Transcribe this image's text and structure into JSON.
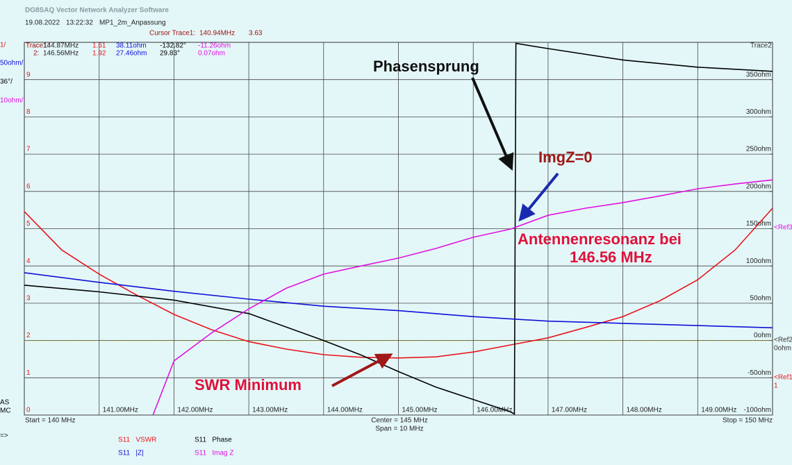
{
  "header": {
    "title": "DG8SAQ Vector Network Analyzer Software",
    "date": "19.08.2022",
    "time": "13:22:32",
    "file": "MP1_2m_Anpassung",
    "cursor_label": "Cursor Trace1:",
    "cursor_freq": "140.94MHz",
    "cursor_value": "3.63"
  },
  "cursor_readout": [
    [
      "Trace1:",
      "144.87MHz",
      "1.51",
      "38.11ohm",
      "-132.82°",
      "-11.26ohm"
    ],
    [
      "2:",
      "146.56MHz",
      "1.92",
      "27.46ohm",
      "29.83°",
      "0.07ohm"
    ]
  ],
  "left_labels": [
    "1/",
    "50ohm/",
    "36°/",
    "10ohm/"
  ],
  "mode_labels": [
    "AS",
    "MC"
  ],
  "right_labels": {
    "trace": "Trace2",
    "ref3": "<Ref3",
    "ref2": "<Ref2",
    "ref2_unit": "0ohm",
    "ref1": "<Ref1",
    "ref1_unit": "1"
  },
  "footer": {
    "start": "Start = 140 MHz",
    "center": "Center = 145 MHz",
    "span": "Span = 10 MHz",
    "stop": "Stop = 150 MHz",
    "prompt": "=>"
  },
  "chart_data": {
    "type": "line",
    "annotations": [
      "Phasensprung",
      "ImgZ=0",
      "Antennenresonanz bei",
      "146.56 MHz",
      "SWR Minimum"
    ],
    "xlim": [
      140,
      150
    ],
    "xticks": [
      {
        "value": 141,
        "label": "141.00MHz"
      },
      {
        "value": 142,
        "label": "142.00MHz"
      },
      {
        "value": 143,
        "label": "143.00MHz"
      },
      {
        "value": 144,
        "label": "144.00MHz"
      },
      {
        "value": 145,
        "label": "145.00MHz"
      },
      {
        "value": 146,
        "label": "146.00MHz"
      },
      {
        "value": 147,
        "label": "147.00MHz"
      },
      {
        "value": 148,
        "label": "148.00MHz"
      },
      {
        "value": 149,
        "label": "149.00MHz"
      }
    ],
    "ylim": [
      0,
      10
    ],
    "yticks": [
      0,
      1,
      2,
      3,
      4,
      5,
      6,
      7,
      8,
      9
    ],
    "y2lim": [
      -100,
      400
    ],
    "y2ticks": [
      {
        "value": -100,
        "label": "-100ohm"
      },
      {
        "value": -50,
        "label": "-50ohm"
      },
      {
        "value": 0,
        "label": "0ohm"
      },
      {
        "value": 50,
        "label": "50ohm"
      },
      {
        "value": 100,
        "label": "100ohm"
      },
      {
        "value": 150,
        "label": "150ohm"
      },
      {
        "value": 200,
        "label": "200ohm"
      },
      {
        "value": 250,
        "label": "250ohm"
      },
      {
        "value": 300,
        "label": "300ohm"
      },
      {
        "value": 350,
        "label": "350ohm"
      }
    ],
    "grid": true,
    "series": [
      {
        "name": "S11   VSWR",
        "color": "#e8141c",
        "axis": "y",
        "x": [
          140,
          140.5,
          141,
          141.5,
          142,
          142.5,
          143,
          143.5,
          144,
          144.5,
          145,
          145.5,
          146,
          146.5,
          147,
          147.5,
          148,
          148.5,
          149,
          149.5,
          150
        ],
        "values": [
          5.46,
          4.43,
          3.78,
          3.22,
          2.7,
          2.29,
          1.97,
          1.77,
          1.62,
          1.55,
          1.53,
          1.56,
          1.69,
          1.88,
          2.07,
          2.35,
          2.64,
          3.07,
          3.63,
          4.43,
          5.55
        ]
      },
      {
        "name": "S11   Phase",
        "color": "#000000",
        "ylim": [
          -180,
          180
        ],
        "x": [
          140,
          141,
          142,
          143,
          144,
          144.5,
          145,
          145.5,
          146,
          146.5,
          146.55,
          146.57,
          147,
          148,
          149,
          150
        ],
        "values": [
          -54.6,
          -61,
          -69,
          -82,
          -108,
          -122,
          -138,
          -153,
          -165,
          -177,
          -179,
          179,
          174,
          163,
          156,
          152
        ]
      },
      {
        "name": "S11   |Z|",
        "color": "#1010d8",
        "axis": "y2",
        "x": [
          140,
          141,
          142,
          143,
          144,
          145,
          146,
          147,
          148,
          149,
          150
        ],
        "values": [
          91,
          78,
          66,
          55.5,
          46,
          40,
          32,
          26,
          23,
          20,
          17
        ]
      },
      {
        "name": "S11   Imag Z",
        "color": "#e010e0",
        "ylim": [
          -50,
          50
        ],
        "x": [
          141.72,
          142,
          142.5,
          143,
          143.5,
          144,
          144.5,
          145,
          145.5,
          146,
          146.5,
          147,
          147.5,
          148,
          148.5,
          149,
          149.5,
          150
        ],
        "values": [
          -50,
          -35.5,
          -28,
          -21.5,
          -16,
          -12.2,
          -10,
          -7.9,
          -5.3,
          -2.3,
          -0.1,
          3.6,
          5.5,
          7,
          8.8,
          10.7,
          12,
          13.1
        ]
      }
    ]
  }
}
